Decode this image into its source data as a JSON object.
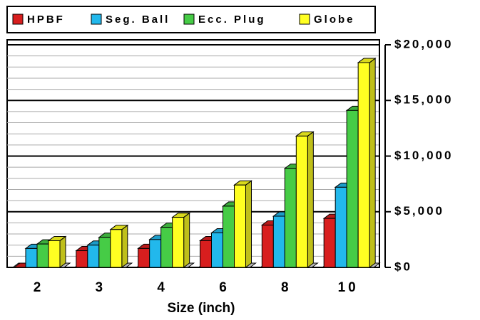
{
  "chart_data": {
    "type": "bar3d",
    "x_label": "Size (inch)",
    "categories": [
      "2",
      "3",
      "4",
      "6",
      "8",
      "10"
    ],
    "series": [
      {
        "name": "HPBF",
        "color": "#d81e1e",
        "values": [
          0,
          1500,
          1700,
          2400,
          3800,
          4400
        ]
      },
      {
        "name": "Seg. Ball",
        "color": "#22b8ec",
        "values": [
          1700,
          2000,
          2500,
          3100,
          4600,
          7200
        ]
      },
      {
        "name": "Ecc. Plug",
        "color": "#46cc46",
        "values": [
          2100,
          2700,
          3600,
          5500,
          8900,
          14100
        ]
      },
      {
        "name": "Globe",
        "color": "#ffff22",
        "values": [
          2400,
          3400,
          4500,
          7400,
          11800,
          18400
        ]
      }
    ],
    "ylim": [
      0,
      20000
    ],
    "yticks": [
      {
        "value": 0,
        "label": "$0"
      },
      {
        "value": 5000,
        "label": "$5,000"
      },
      {
        "value": 10000,
        "label": "$10,000"
      },
      {
        "value": 15000,
        "label": "$15,000"
      },
      {
        "value": 20000,
        "label": "$20,000"
      }
    ],
    "minor_step": 1000,
    "legend": "top"
  }
}
